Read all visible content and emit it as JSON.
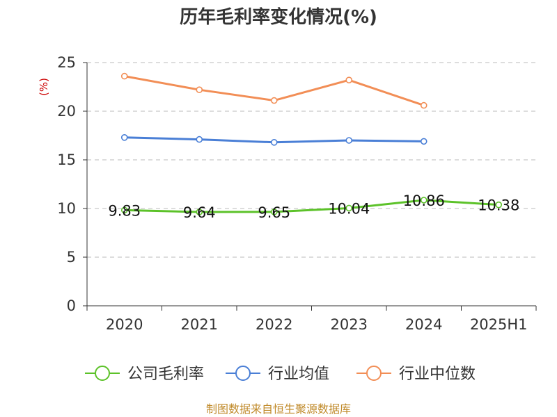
{
  "chart_data": {
    "type": "line",
    "title": "历年毛利率变化情况(%)",
    "ylabel": "(%)",
    "categories": [
      "2020",
      "2021",
      "2022",
      "2023",
      "2024",
      "2025H1"
    ],
    "ylim": [
      0,
      25
    ],
    "yticks": [
      0,
      5,
      10,
      15,
      20,
      25
    ],
    "grid": true,
    "legend_position": "bottom",
    "series": [
      {
        "name": "公司毛利率",
        "color": "#5cc229",
        "values": [
          9.83,
          9.64,
          9.65,
          10.04,
          10.86,
          10.38
        ],
        "show_labels": true,
        "labels": [
          "9.83",
          "9.64",
          "9.65",
          "10.04",
          "10.86",
          "10.38"
        ]
      },
      {
        "name": "行业均值",
        "color": "#4a7fd6",
        "values": [
          17.3,
          17.1,
          16.8,
          17.0,
          16.9,
          null
        ],
        "show_labels": false
      },
      {
        "name": "行业中位数",
        "color": "#f28e56",
        "values": [
          23.6,
          22.2,
          21.1,
          23.2,
          20.6,
          null
        ],
        "show_labels": false
      }
    ],
    "source": "制图数据来自恒生聚源数据库"
  }
}
